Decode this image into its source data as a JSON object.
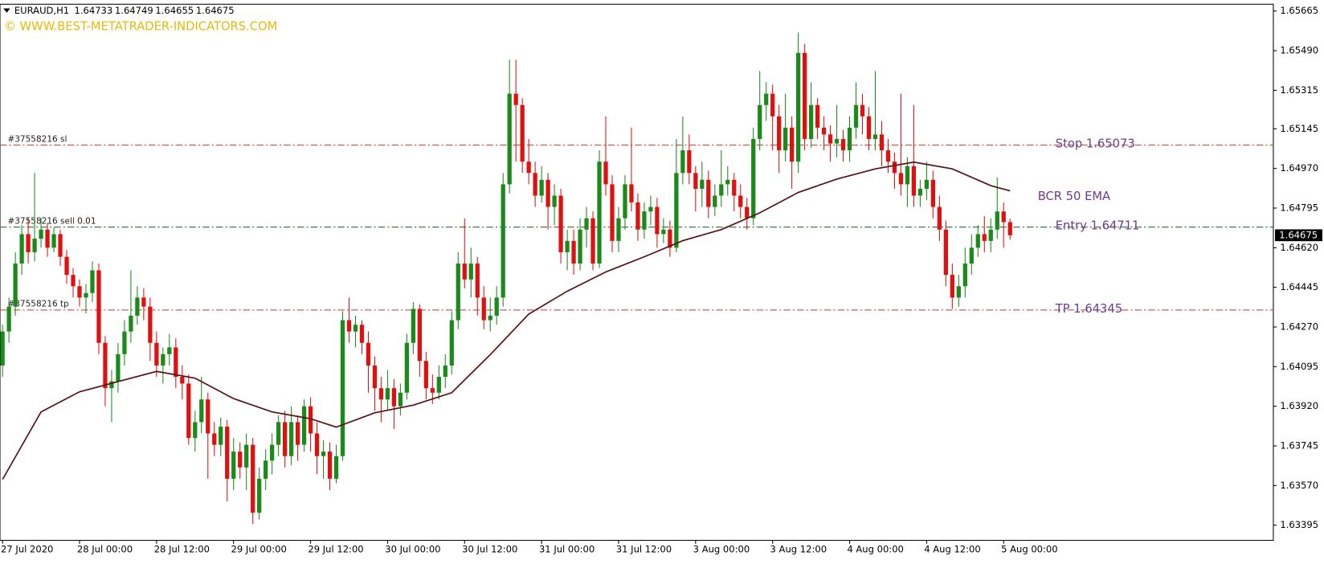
{
  "chart_data": {
    "type": "candlestick",
    "title": "EURAUD,H1",
    "watermark": "© WWW.BEST-METATRADER-INDICATORS.COM",
    "up_color": "#1a8a1a",
    "down_color": "#e01010",
    "open": [
      1.641,
      1.6425,
      1.6436,
      1.6455,
      1.6468,
      1.646,
      1.6466,
      1.647,
      1.6462,
      1.6468,
      1.6458,
      1.645,
      1.6445,
      1.644,
      1.6442,
      1.6452,
      1.642,
      1.64,
      1.6403,
      1.6415,
      1.6425,
      1.6432,
      1.644,
      1.6436,
      1.642,
      1.641,
      1.6415,
      1.6418,
      1.6405,
      1.6402,
      1.6378,
      1.6385,
      1.6395,
      1.638,
      1.6375,
      1.6383,
      1.636,
      1.6372,
      1.6365,
      1.6375,
      1.6345,
      1.636,
      1.6368,
      1.6375,
      1.6385,
      1.637,
      1.6385,
      1.6375,
      1.6392,
      1.638,
      1.637,
      1.6372,
      1.636,
      1.637,
      1.643,
      1.6425,
      1.6428,
      1.642,
      1.641,
      1.64,
      1.6395,
      1.64,
      1.6392,
      1.6398,
      1.642,
      1.6435,
      1.6412,
      1.64,
      1.6398,
      1.6405,
      1.641,
      1.643,
      1.6455,
      1.6448,
      1.6455,
      1.644,
      1.643,
      1.6432,
      1.644,
      1.649,
      1.653,
      1.6525,
      1.65,
      1.6495,
      1.6485,
      1.6492,
      1.648,
      1.6485,
      1.646,
      1.6465,
      1.6455,
      1.647,
      1.6475,
      1.6455,
      1.65,
      1.649,
      1.6465,
      1.6475,
      1.649,
      1.6482,
      1.647,
      1.6478,
      1.648,
      1.6468,
      1.647,
      1.6462,
      1.6495,
      1.6505,
      1.6495,
      1.6488,
      1.6492,
      1.648,
      1.6485,
      1.649,
      1.6492,
      1.6485,
      1.648,
      1.6475,
      1.651,
      1.6525,
      1.653,
      1.652,
      1.6505,
      1.6515,
      1.65,
      1.6548,
      1.651,
      1.6525,
      1.6515,
      1.6512,
      1.6508,
      1.651,
      1.6505,
      1.6515,
      1.6525,
      1.652,
      1.651,
      1.6512,
      1.6505,
      1.65,
      1.6495,
      1.649,
      1.6498,
      1.6485,
      1.6488,
      1.6492,
      1.648,
      1.647,
      1.645,
      1.644,
      1.6445,
      1.6455,
      1.6462,
      1.6468,
      1.6465,
      1.647,
      1.6478,
      1.64733
    ],
    "high": [
      1.6428,
      1.644,
      1.646,
      1.6472,
      1.6475,
      1.6495,
      1.6475,
      1.6473,
      1.6471,
      1.647,
      1.6461,
      1.6453,
      1.6448,
      1.6446,
      1.6456,
      1.6455,
      1.6423,
      1.6408,
      1.642,
      1.643,
      1.6452,
      1.6445,
      1.6444,
      1.644,
      1.6425,
      1.6418,
      1.6424,
      1.6422,
      1.641,
      1.6406,
      1.639,
      1.6405,
      1.6398,
      1.6385,
      1.6387,
      1.6386,
      1.6378,
      1.6376,
      1.638,
      1.6378,
      1.6365,
      1.6373,
      1.638,
      1.6388,
      1.639,
      1.6392,
      1.6388,
      1.6395,
      1.6396,
      1.6385,
      1.6377,
      1.6376,
      1.6375,
      1.6434,
      1.644,
      1.6432,
      1.643,
      1.6425,
      1.6414,
      1.6405,
      1.6408,
      1.6404,
      1.6402,
      1.6424,
      1.6438,
      1.6437,
      1.6416,
      1.6406,
      1.641,
      1.6415,
      1.6434,
      1.646,
      1.6475,
      1.6462,
      1.6458,
      1.6445,
      1.644,
      1.6445,
      1.6495,
      1.6545,
      1.6545,
      1.6528,
      1.651,
      1.65,
      1.6498,
      1.6495,
      1.649,
      1.6488,
      1.647,
      1.647,
      1.6475,
      1.648,
      1.6478,
      1.6505,
      1.652,
      1.6494,
      1.648,
      1.6494,
      1.6515,
      1.6486,
      1.6482,
      1.6485,
      1.6484,
      1.6475,
      1.6474,
      1.651,
      1.652,
      1.6512,
      1.6498,
      1.65,
      1.6496,
      1.649,
      1.6505,
      1.6498,
      1.6495,
      1.649,
      1.6484,
      1.6515,
      1.654,
      1.6535,
      1.6534,
      1.6525,
      1.653,
      1.652,
      1.6557,
      1.6552,
      1.6535,
      1.6528,
      1.652,
      1.6516,
      1.6525,
      1.6514,
      1.652,
      1.6535,
      1.653,
      1.6524,
      1.654,
      1.6518,
      1.651,
      1.6504,
      1.653,
      1.6502,
      1.6525,
      1.6492,
      1.65,
      1.6496,
      1.6485,
      1.6474,
      1.6455,
      1.645,
      1.6462,
      1.6468,
      1.6472,
      1.6476,
      1.6475,
      1.6493,
      1.6482,
      1.64749
    ],
    "low": [
      1.6405,
      1.642,
      1.6432,
      1.645,
      1.6455,
      1.6456,
      1.6462,
      1.6458,
      1.646,
      1.6454,
      1.6446,
      1.644,
      1.6436,
      1.6433,
      1.6438,
      1.6415,
      1.6392,
      1.6385,
      1.6398,
      1.641,
      1.642,
      1.6428,
      1.643,
      1.6412,
      1.6405,
      1.6402,
      1.641,
      1.64,
      1.6395,
      1.6375,
      1.6372,
      1.638,
      1.636,
      1.637,
      1.637,
      1.635,
      1.6355,
      1.636,
      1.6355,
      1.634,
      1.6342,
      1.6355,
      1.6362,
      1.637,
      1.6365,
      1.6366,
      1.6368,
      1.6372,
      1.6372,
      1.6362,
      1.636,
      1.6355,
      1.6358,
      1.6368,
      1.642,
      1.6418,
      1.6415,
      1.6398,
      1.639,
      1.6385,
      1.639,
      1.6382,
      1.6388,
      1.6395,
      1.6415,
      1.6405,
      1.6395,
      1.6393,
      1.6395,
      1.64,
      1.6406,
      1.6426,
      1.6444,
      1.644,
      1.6432,
      1.6426,
      1.6425,
      1.6428,
      1.6436,
      1.6486,
      1.65,
      1.6495,
      1.649,
      1.648,
      1.6482,
      1.647,
      1.6472,
      1.6455,
      1.6452,
      1.645,
      1.6452,
      1.6462,
      1.6452,
      1.6453,
      1.6485,
      1.646,
      1.646,
      1.647,
      1.6478,
      1.6465,
      1.6466,
      1.6472,
      1.6462,
      1.6464,
      1.6458,
      1.646,
      1.649,
      1.649,
      1.6478,
      1.648,
      1.6475,
      1.6476,
      1.648,
      1.6485,
      1.6478,
      1.6475,
      1.647,
      1.6472,
      1.6505,
      1.6518,
      1.6505,
      1.6495,
      1.65,
      1.6488,
      1.6495,
      1.6505,
      1.6506,
      1.651,
      1.6505,
      1.65,
      1.6502,
      1.65,
      1.65,
      1.651,
      1.6512,
      1.6505,
      1.6505,
      1.6498,
      1.6495,
      1.6488,
      1.6485,
      1.648,
      1.648,
      1.648,
      1.6483,
      1.6475,
      1.6465,
      1.6445,
      1.6435,
      1.6436,
      1.644,
      1.645,
      1.6458,
      1.646,
      1.646,
      1.6466,
      1.6462,
      1.64655
    ],
    "close": [
      1.6425,
      1.6436,
      1.6455,
      1.6468,
      1.646,
      1.6466,
      1.647,
      1.6462,
      1.6468,
      1.6458,
      1.645,
      1.6445,
      1.644,
      1.6442,
      1.6452,
      1.642,
      1.64,
      1.6403,
      1.6415,
      1.6425,
      1.6432,
      1.644,
      1.6436,
      1.642,
      1.641,
      1.6415,
      1.6418,
      1.6405,
      1.6402,
      1.6378,
      1.6385,
      1.6395,
      1.638,
      1.6375,
      1.6383,
      1.636,
      1.6372,
      1.6365,
      1.6375,
      1.6345,
      1.636,
      1.6368,
      1.6375,
      1.6385,
      1.637,
      1.6385,
      1.6375,
      1.6392,
      1.638,
      1.637,
      1.6372,
      1.636,
      1.637,
      1.643,
      1.6425,
      1.6428,
      1.642,
      1.641,
      1.64,
      1.6395,
      1.64,
      1.6392,
      1.6398,
      1.642,
      1.6435,
      1.6412,
      1.64,
      1.6398,
      1.6405,
      1.641,
      1.643,
      1.6455,
      1.6448,
      1.6455,
      1.644,
      1.643,
      1.6432,
      1.644,
      1.649,
      1.653,
      1.6525,
      1.65,
      1.6495,
      1.6485,
      1.6492,
      1.648,
      1.6485,
      1.646,
      1.6465,
      1.6455,
      1.647,
      1.6475,
      1.6455,
      1.65,
      1.649,
      1.6465,
      1.6475,
      1.649,
      1.6482,
      1.647,
      1.6478,
      1.648,
      1.6468,
      1.647,
      1.6462,
      1.6495,
      1.6505,
      1.6495,
      1.6488,
      1.6492,
      1.648,
      1.6485,
      1.649,
      1.6492,
      1.6485,
      1.648,
      1.6475,
      1.651,
      1.6525,
      1.653,
      1.652,
      1.6505,
      1.6515,
      1.65,
      1.6548,
      1.651,
      1.6525,
      1.6515,
      1.6512,
      1.6508,
      1.651,
      1.6505,
      1.6515,
      1.6525,
      1.652,
      1.651,
      1.6512,
      1.6505,
      1.65,
      1.6495,
      1.649,
      1.6498,
      1.6485,
      1.6488,
      1.6492,
      1.648,
      1.647,
      1.645,
      1.644,
      1.6445,
      1.6455,
      1.6462,
      1.6468,
      1.6465,
      1.647,
      1.6478,
      1.64733,
      1.64675
    ],
    "ylim": [
      1.63328,
      1.65695
    ],
    "yticks": [
      1.65665,
      {
        "value": 1.6549,
        "label": "1.65490"
      },
      1.65315,
      1.65145,
      {
        "value": 1.6497,
        "label": "1.64970"
      },
      1.64795,
      {
        "value": 1.6462,
        "label": "1.64620"
      },
      1.64445,
      {
        "value": 1.6427,
        "label": "1.64270"
      },
      1.64095,
      {
        "value": 1.6392,
        "label": "1.63920"
      },
      1.63745,
      {
        "value": 1.6357,
        "label": "1.63570"
      },
      1.63395
    ],
    "xticks": [
      {
        "value": 0,
        "label": "27 Jul 2020"
      },
      {
        "value": 12,
        "label": "28 Jul 00:00"
      },
      {
        "value": 24,
        "label": "28 Jul 12:00"
      },
      {
        "value": 36,
        "label": "29 Jul 00:00"
      },
      {
        "value": 48,
        "label": "29 Jul 12:00"
      },
      {
        "value": 60,
        "label": "30 Jul 00:00"
      },
      {
        "value": 72,
        "label": "30 Jul 12:00"
      },
      {
        "value": 84,
        "label": "31 Jul 00:00"
      },
      {
        "value": 96,
        "label": "31 Jul 12:00"
      },
      {
        "value": 108,
        "label": "3 Aug 00:00"
      },
      {
        "value": 120,
        "label": "3 Aug 12:00"
      },
      {
        "value": 132,
        "label": "4 Aug 00:00"
      },
      {
        "value": 144,
        "label": "4 Aug 12:00"
      },
      {
        "value": 156,
        "label": "5 Aug 00:00"
      }
    ],
    "ema": {
      "name": "BCR 50 EMA",
      "color": "#5a1010",
      "x": [
        0,
        6,
        12,
        18,
        24,
        30,
        36,
        42,
        48,
        52,
        58,
        64,
        70,
        76,
        82,
        88,
        94,
        100,
        106,
        112,
        118,
        124,
        130,
        136,
        142,
        148,
        154,
        157
      ],
      "values": [
        1.63597,
        1.63895,
        1.63984,
        1.64029,
        1.64074,
        1.64044,
        1.63954,
        1.63895,
        1.63865,
        1.63828,
        1.63891,
        1.63925,
        1.6398,
        1.64148,
        1.64327,
        1.64428,
        1.64513,
        1.6458,
        1.64651,
        1.647,
        1.64774,
        1.64864,
        1.64923,
        1.64968,
        1.64998,
        1.64968,
        1.64894,
        1.64871
      ]
    },
    "levels": [
      {
        "order": "#37558216 sl",
        "label": "Stop 1.65073",
        "value": 1.65073,
        "color": "#c0392b"
      },
      {
        "order": "#37558216 sell 0.01",
        "label": "Entry 1.64711",
        "value": 1.64711,
        "color": "#2e6b3a"
      },
      {
        "order": "#37558216 tp",
        "label": "TP 1.64345",
        "value": 1.64345,
        "color": "#c0392b"
      }
    ]
  }
}
